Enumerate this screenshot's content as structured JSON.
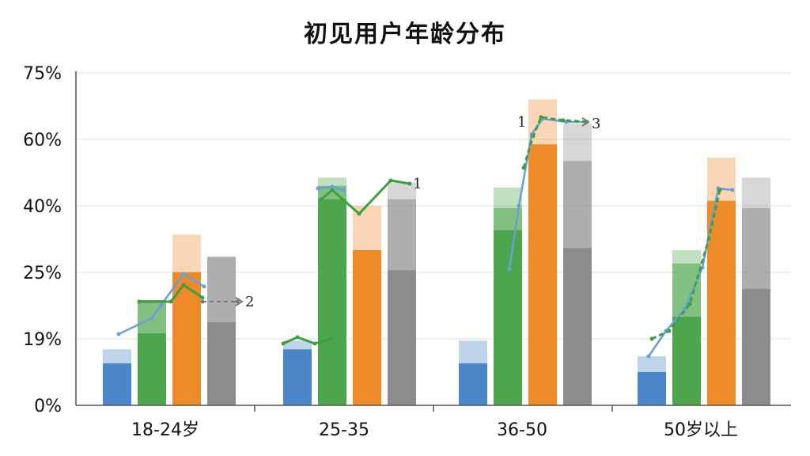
{
  "chart_data": {
    "type": "bar",
    "title": "初见用户年龄分布",
    "categories": [
      "18-24岁",
      "25-35",
      "36-50",
      "50岁以上"
    ],
    "y_tick_labels": [
      "0%",
      "19%",
      "25%",
      "40%",
      "60%",
      "75%"
    ],
    "ylim": [
      0,
      75
    ],
    "grid": true,
    "series": [
      {
        "color": "#4a86c8",
        "solid": [
          12,
          16,
          12,
          9.5
        ],
        "light": [
          16,
          18.5,
          18.5,
          14
        ]
      },
      {
        "color": "#4da64d",
        "solid": [
          19.5,
          42,
          34.5,
          21
        ],
        "mid": [
          22.5,
          46,
          39.5,
          27
        ],
        "light": [
          22.5,
          48.5,
          45.5,
          30
        ]
      },
      {
        "color": "#ee8a2a",
        "solid": [
          25,
          30,
          58.5,
          41.5
        ],
        "light": [
          33.5,
          40,
          69,
          54.5
        ]
      },
      {
        "color": "#8c8c8c",
        "solid": [
          20.5,
          25.5,
          30.5,
          23.5
        ],
        "mid": [
          28.5,
          42,
          53.5,
          39.5
        ],
        "light": [
          28.5,
          47,
          63.5,
          48.5
        ]
      }
    ],
    "annotations": [
      "2",
      "1",
      "1",
      "3"
    ]
  }
}
